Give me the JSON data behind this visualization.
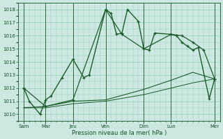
{
  "title": "Pression niveau de la mer( hPa )",
  "background_color": "#cce8e0",
  "grid_color": "#99ccbb",
  "line_color": "#1a5c28",
  "spine_color": "#2a6a3a",
  "tick_color": "#1a4a2a",
  "ylim": [
    1009.5,
    1018.5
  ],
  "yticks": [
    1010,
    1011,
    1012,
    1013,
    1014,
    1015,
    1016,
    1017,
    1018
  ],
  "xlim": [
    -0.5,
    18.0
  ],
  "day_labels": [
    "Sam",
    "Mar",
    "Jeu",
    "Ven",
    "Dim",
    "Lun",
    "Mer"
  ],
  "day_positions": [
    0.0,
    2.0,
    4.5,
    7.5,
    11.0,
    13.5,
    17.5
  ],
  "series": [
    {
      "x": [
        0,
        0.5,
        1.5,
        2.0,
        2.5,
        3.5,
        4.5,
        5.5,
        6.0,
        7.5,
        8.0,
        8.5,
        9.0,
        9.5,
        10.5,
        11.0,
        11.5,
        12.0,
        13.5,
        14.0,
        14.5,
        15.0,
        15.5,
        16.0,
        17.0,
        17.5
      ],
      "y": [
        1012.0,
        1011.0,
        1010.0,
        1011.1,
        1011.4,
        1012.8,
        1014.2,
        1012.8,
        1013.0,
        1018.0,
        1017.7,
        1016.1,
        1016.2,
        1018.0,
        1017.1,
        1015.0,
        1014.9,
        1016.2,
        1016.1,
        1016.0,
        1015.5,
        1015.2,
        1014.9,
        1015.1,
        1011.2,
        1012.7
      ],
      "marker": true,
      "linewidth": 1.0
    },
    {
      "x": [
        0,
        2.0,
        4.5,
        7.5,
        9.0,
        11.0,
        13.5,
        14.5,
        15.5,
        16.5,
        17.5
      ],
      "y": [
        1012.0,
        1010.6,
        1011.1,
        1018.0,
        1016.1,
        1015.0,
        1016.1,
        1016.0,
        1015.5,
        1014.9,
        1012.7
      ],
      "marker": true,
      "linewidth": 0.9
    },
    {
      "x": [
        0,
        2.0,
        4.5,
        7.5,
        11.0,
        13.5,
        15.5,
        17.5
      ],
      "y": [
        1010.5,
        1010.6,
        1011.0,
        1011.1,
        1011.9,
        1012.6,
        1013.2,
        1012.7
      ],
      "marker": false,
      "linewidth": 0.8
    },
    {
      "x": [
        0,
        2.0,
        4.5,
        7.5,
        11.0,
        13.5,
        15.5,
        17.5
      ],
      "y": [
        1010.5,
        1010.5,
        1010.8,
        1011.0,
        1011.5,
        1012.0,
        1012.4,
        1012.7
      ],
      "marker": false,
      "linewidth": 0.7
    }
  ]
}
